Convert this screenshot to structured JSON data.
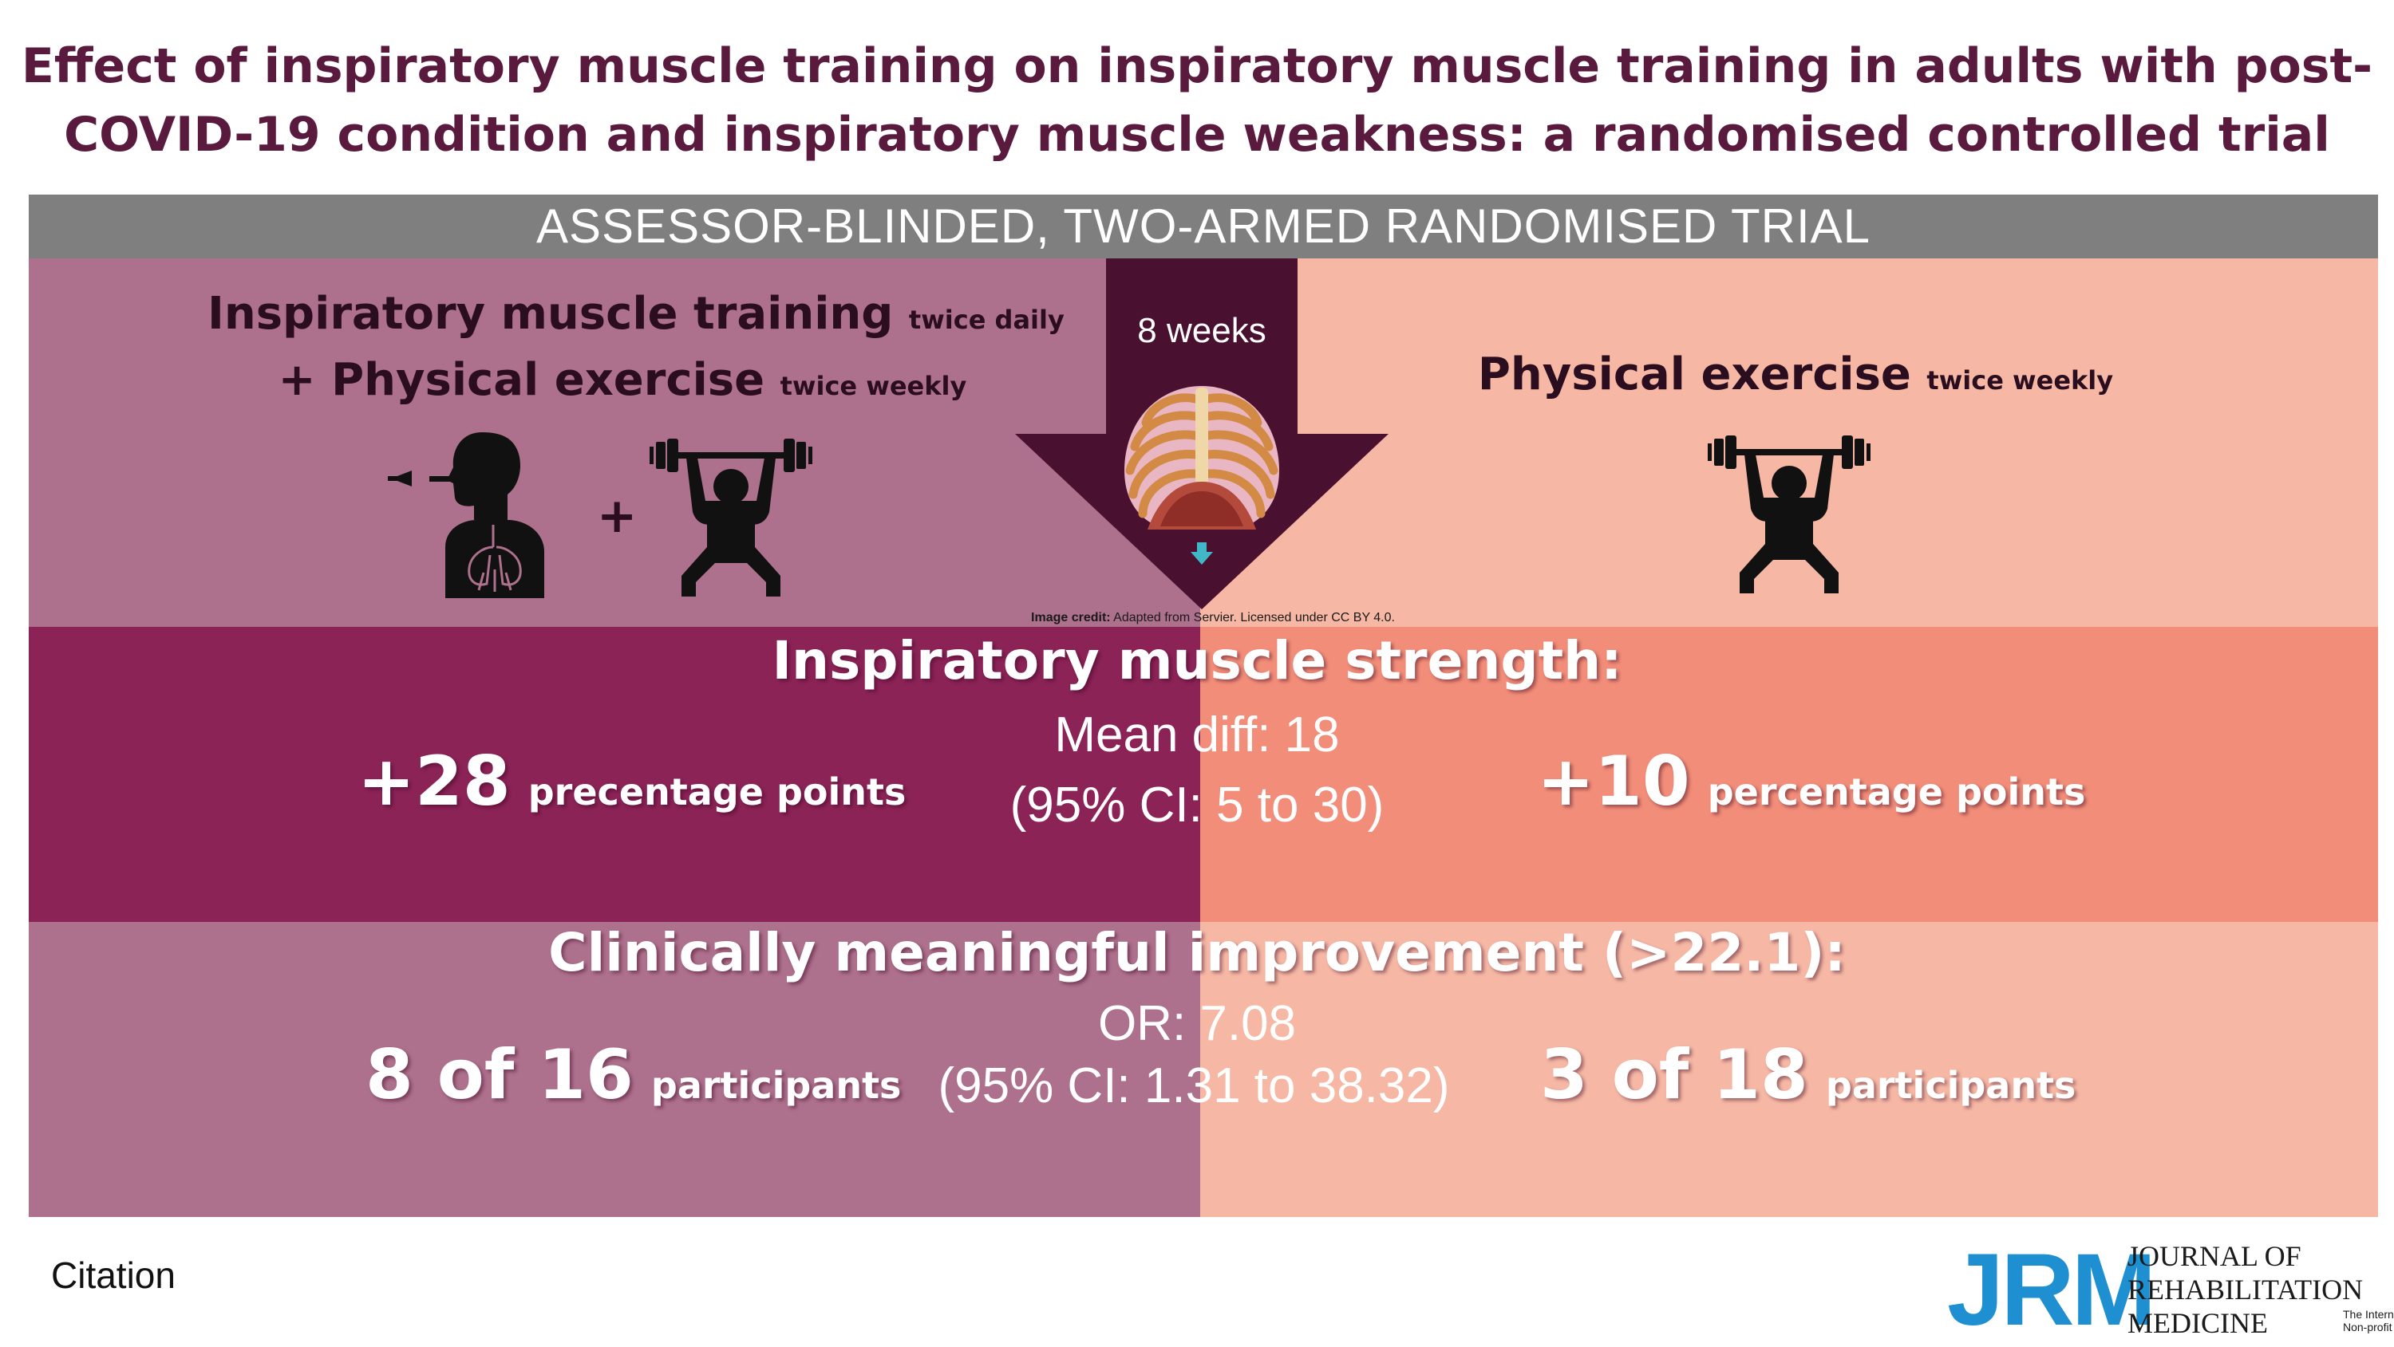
{
  "title": {
    "line1": "Effect of inspiratory muscle training on inspiratory muscle training in adults with post-",
    "line2": "COVID-19 condition and inspiratory muscle weakness: a randomised controlled trial"
  },
  "banner": "ASSESSOR-BLINDED, TWO-ARMED RANDOMISED TRIAL",
  "intervention": {
    "line1_main": "Inspiratory muscle training",
    "line1_small": "twice daily",
    "line2_main": "+ Physical exercise",
    "line2_small": "twice weekly",
    "plus": "+"
  },
  "control": {
    "main": "Physical exercise",
    "small": "twice weekly"
  },
  "duration": "8 weeks",
  "image_credit": {
    "label": "Image credit:",
    "text": "Adapted from Servier. Licensed under CC BY 4.0."
  },
  "strength": {
    "heading": "Inspiratory muscle strength:",
    "mean_diff": "Mean diff: 18",
    "ci": "(95% CI: 5 to 30)",
    "left_value": "+28",
    "left_unit": "precentage points",
    "right_value": "+10",
    "right_unit": "percentage points"
  },
  "improvement": {
    "heading": "Clinically meaningful improvement (>22.1):",
    "or": "OR: 7.08",
    "ci": "(95% CI: 1.31 to 38.32)",
    "left_value": "8 of 16",
    "left_unit": "participants",
    "right_value": "3 of 18",
    "right_unit": "participants"
  },
  "citation": "Citation",
  "logo": {
    "abbr": "JRM",
    "line1": "JOURNAL OF",
    "line2": "REHABILITATION",
    "line3": "MEDICINE",
    "sub1": "The International",
    "sub2": "Non-profit Journal"
  },
  "colors": {
    "title": "#5a1a3e",
    "banner": "#7f7f7f",
    "intervention_light": "#ad708d",
    "intervention_dark": "#8b2357",
    "control_light": "#f6b8a5",
    "control_dark": "#f28d79",
    "arrow": "#4a1030",
    "logo_blue": "#1e8fd0"
  },
  "icons": [
    "breathing-person-icon",
    "weightlifter-icon",
    "ribcage-diaphragm-icon",
    "down-arrow-icon"
  ]
}
